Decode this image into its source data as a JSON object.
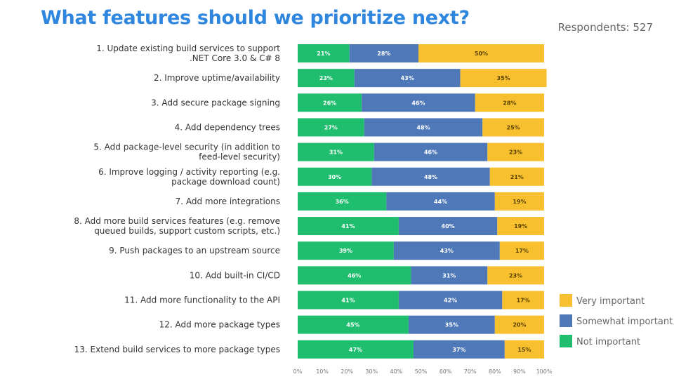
{
  "title": "What features should we prioritize next?",
  "respondents": "Respondents: 527",
  "colors": {
    "not_important": "#1fbd6e",
    "somewhat_important": "#4f78b8",
    "very_important": "#f8c02f"
  },
  "chart_data": {
    "type": "bar",
    "orientation": "horizontal",
    "stacked": true,
    "title": "What features should we prioritize next?",
    "categories": [
      [
        "1. Update existing build services to support",
        ".NET Core 3.0 & C# 8"
      ],
      [
        "2. Improve uptime/availability"
      ],
      [
        "3. Add secure package signing"
      ],
      [
        "4. Add dependency trees"
      ],
      [
        "5. Add package-level security (in addition to",
        "feed-level security)"
      ],
      [
        "6. Improve logging / activity reporting (e.g.",
        "package download count)"
      ],
      [
        "7. Add more integrations"
      ],
      [
        "8. Add more build services features (e.g. remove",
        "queued builds, support custom scripts, etc.)"
      ],
      [
        "9. Push packages to an upstream source"
      ],
      [
        "10. Add built-in CI/CD"
      ],
      [
        "11. Add more functionality to the API"
      ],
      [
        "12. Add more package types"
      ],
      [
        "13. Extend build services to more package types"
      ]
    ],
    "series": [
      {
        "name": "Not important",
        "values": [
          21,
          23,
          26,
          27,
          31,
          30,
          36,
          41,
          39,
          46,
          41,
          45,
          47
        ]
      },
      {
        "name": "Somewhat important",
        "values": [
          28,
          43,
          46,
          48,
          46,
          48,
          44,
          40,
          43,
          31,
          42,
          35,
          37
        ]
      },
      {
        "name": "Very important",
        "values": [
          50,
          35,
          28,
          25,
          23,
          21,
          19,
          19,
          17,
          23,
          17,
          20,
          15
        ]
      }
    ],
    "xlim": [
      0,
      100
    ],
    "xticks": [
      "0%",
      "10%",
      "20%",
      "30%",
      "40%",
      "50%",
      "60%",
      "70%",
      "80%",
      "90%",
      "100%"
    ],
    "legend": {
      "placement": "bottom-right",
      "entries": [
        "Very important",
        "Somewhat important",
        "Not important"
      ]
    }
  }
}
